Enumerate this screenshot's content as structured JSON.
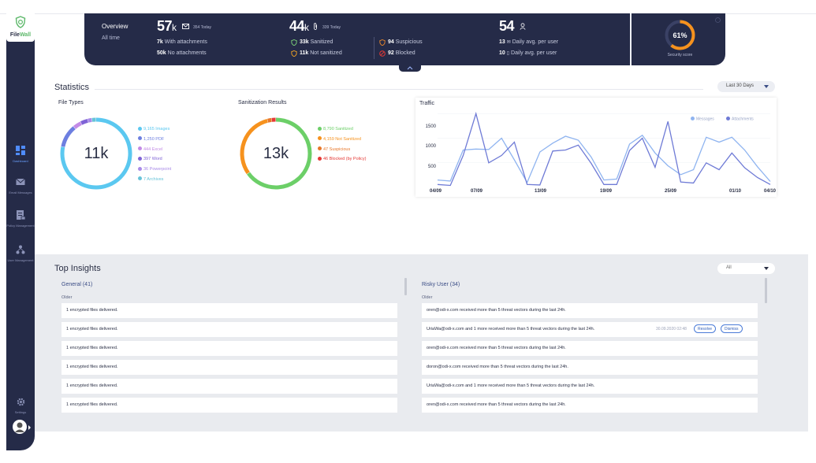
{
  "sidebar": {
    "brand_a": "File",
    "brand_b": "Wall",
    "items": [
      {
        "label": "Dashboard",
        "icon": "dashboard-icon",
        "active": true
      },
      {
        "label": "Email Messages",
        "icon": "mail-icon"
      },
      {
        "label": "Policy Management",
        "icon": "policy-icon"
      },
      {
        "label": "User Management",
        "icon": "users-icon"
      }
    ],
    "settings_label": "Settings"
  },
  "overview": {
    "title": "Overview",
    "subtitle": "All time",
    "messages": {
      "value": "57",
      "unit": "k",
      "today": "354 Today",
      "with_attach_val": "7k",
      "with_attach_lbl": "With attachments",
      "no_attach_val": "50k",
      "no_attach_lbl": "No attachments"
    },
    "attachments": {
      "value": "44",
      "unit": "k",
      "today": "339 Today",
      "sanitized_val": "33k",
      "sanitized_lbl": "Sanitized",
      "not_sanitized_val": "11k",
      "not_sanitized_lbl": "Not sanitized",
      "suspicious_val": "94",
      "suspicious_lbl": "Suspicious",
      "blocked_val": "92",
      "blocked_lbl": "Blocked"
    },
    "users": {
      "value": "54",
      "daily_msg_val": "13",
      "daily_msg_lbl": "Daily avg. per user",
      "daily_att_val": "10",
      "daily_att_lbl": "Daily avg. per user"
    },
    "score": {
      "value": "61%",
      "fraction": 0.61,
      "label": "Security score"
    }
  },
  "statistics": {
    "title": "Statistics",
    "range": "Last 30 Days",
    "file_types": {
      "label": "File Types",
      "total": "11k",
      "items": [
        {
          "text": "9,165 Images",
          "color": "#5bc8f0",
          "value": 9165
        },
        {
          "text": "1,250 PDF",
          "color": "#6d7fe0",
          "value": 1250
        },
        {
          "text": "444 Excel",
          "color": "#c38be6",
          "value": 444
        },
        {
          "text": "397 Word",
          "color": "#7f63d6",
          "value": 397
        },
        {
          "text": "36 Powerpoint",
          "color": "#a98be8",
          "value": 36
        },
        {
          "text": "7 Archives",
          "color": "#67c3d8",
          "value": 7
        }
      ]
    },
    "sanitization": {
      "label": "Sanitization Results",
      "total": "13k",
      "items": [
        {
          "text": "8,790 Sanitized",
          "color": "#6ccf68",
          "value": 8790
        },
        {
          "text": "4,159 Not Sanitized",
          "color": "#f6921e",
          "value": 4159
        },
        {
          "text": "47 Suspicious",
          "color": "#e7772a",
          "value": 47
        },
        {
          "text": "46 Blocked (by Policy)",
          "color": "#e53935",
          "value": 46
        }
      ]
    },
    "traffic": {
      "title": "Traffic",
      "legend": [
        "Messages",
        "Attachments"
      ],
      "colors": [
        "#8fb4f0",
        "#6f7bd6"
      ]
    }
  },
  "chart_data": {
    "type": "line",
    "title": "Traffic",
    "x_ticks": [
      "04/09",
      "07/09",
      "13/09",
      "19/09",
      "25/09",
      "01/10",
      "04/10"
    ],
    "ylim": [
      0,
      1600
    ],
    "y_ticks": [
      "1500",
      "1000",
      "500"
    ],
    "series": [
      {
        "name": "Messages",
        "values": [
          150,
          130,
          760,
          780,
          770,
          1000,
          560,
          100,
          720,
          900,
          1040,
          960,
          620,
          150,
          170,
          880,
          1060,
          700,
          440,
          260,
          360,
          1020,
          920,
          1020,
          760,
          420,
          120
        ]
      },
      {
        "name": "Attachments",
        "values": [
          60,
          40,
          650,
          1500,
          500,
          650,
          920,
          60,
          50,
          740,
          760,
          860,
          490,
          60,
          60,
          750,
          1000,
          410,
          1340,
          110,
          90,
          500,
          360,
          700,
          400,
          200,
          60
        ]
      }
    ]
  },
  "insights": {
    "title": "Top Insights",
    "filter": "All",
    "general": {
      "header": "General (41)",
      "older": "Older",
      "rows": [
        "1 encrypted files delivered.",
        "1 encrypted files delivered.",
        "1 encrypted files delivered.",
        "1 encrypted files delivered.",
        "1 encrypted files delivered.",
        "1 encrypted files delivered."
      ]
    },
    "risky": {
      "header": "Risky User (34)",
      "older": "Older",
      "rows": [
        "oren@odi-x.com received more than 5 threat vectors during the last 24h.",
        "UriaWa@odi-x.com and 1 more received more than 5 threat vectors during the last 24h.",
        "oren@odi-x.com received more than 5 threat vectors during the last 24h.",
        "doron@odi-x.com received more than 5 threat vectors during the last 24h.",
        "UriaWa@odi-x.com and 1 more received more than 5 threat vectors during the last 24h.",
        "oren@odi-x.com received more than 5 threat vectors during the last 24h."
      ],
      "hover_timestamp": "30.09.2020 02:48",
      "resolve": "Resolve",
      "dismiss": "Dismiss"
    }
  }
}
